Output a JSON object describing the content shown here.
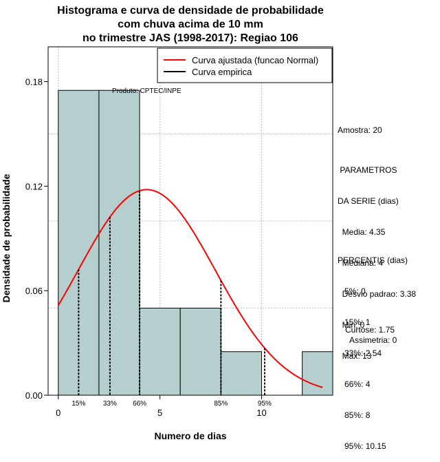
{
  "chart_data": {
    "type": "bar",
    "title_lines": [
      "Histograma e curva de densidade de probabilidade",
      "com chuva acima de 10 mm",
      "no trimestre JAS (1998-2017): Regiao 106"
    ],
    "xlabel": "Numero de dias",
    "ylabel": "Densidade de probabilidade",
    "xlim": [
      -0.5,
      13.5
    ],
    "ylim": [
      0,
      0.2
    ],
    "x_ticks": [
      0,
      5,
      10
    ],
    "y_ticks": [
      0.0,
      0.06,
      0.12,
      0.18
    ],
    "y_tick_labels": [
      "0.00",
      "0.06",
      "0.12",
      "0.18"
    ],
    "grid": true,
    "bins": [
      {
        "start": 0,
        "end": 2,
        "density": 0.175
      },
      {
        "start": 2,
        "end": 4,
        "density": 0.175
      },
      {
        "start": 4,
        "end": 6,
        "density": 0.05
      },
      {
        "start": 6,
        "end": 8,
        "density": 0.05
      },
      {
        "start": 8,
        "end": 10,
        "density": 0.025
      },
      {
        "start": 10,
        "end": 12,
        "density": 0.0
      },
      {
        "start": 12,
        "end": 14,
        "density": 0.025
      }
    ],
    "bar_color": "#b5cece",
    "fitted_curve": {
      "name": "Curva ajustada (funcao Normal)",
      "color": "#ff0000",
      "mean": 4.35,
      "sd": 3.38,
      "x_range": [
        0,
        13
      ]
    },
    "empirical_curve": {
      "name": "Curva empirica",
      "color": "#000000"
    },
    "legend_position": "top-right",
    "percentile_lines": [
      {
        "label": "15%",
        "x": 1
      },
      {
        "label": "33%",
        "x": 2.54
      },
      {
        "label": "66%",
        "x": 4
      },
      {
        "label": "85%",
        "x": 8
      },
      {
        "label": "95%",
        "x": 10.15
      }
    ],
    "annotation": "Produto: CPTEC/INPE"
  },
  "side_panel": {
    "sample": "Amostra: 20",
    "params_lines": [
      " PARAMETROS",
      "DA SERIE (dias)",
      "  Media: 4.35",
      "  Mediana: 4",
      "  Desvio padrao: 3.38",
      "  Min: 0",
      "  Max: 13"
    ],
    "percentis_lines": [
      "PERCENTIS (dias)",
      "   5%: 0",
      "   15%: 1",
      "   33%: 2.54",
      "   66%: 4",
      "   85%: 8",
      "   95%: 10.15"
    ],
    "curtose": "Curtose: 1.75",
    "assimetria": "Assimetria: 0"
  }
}
